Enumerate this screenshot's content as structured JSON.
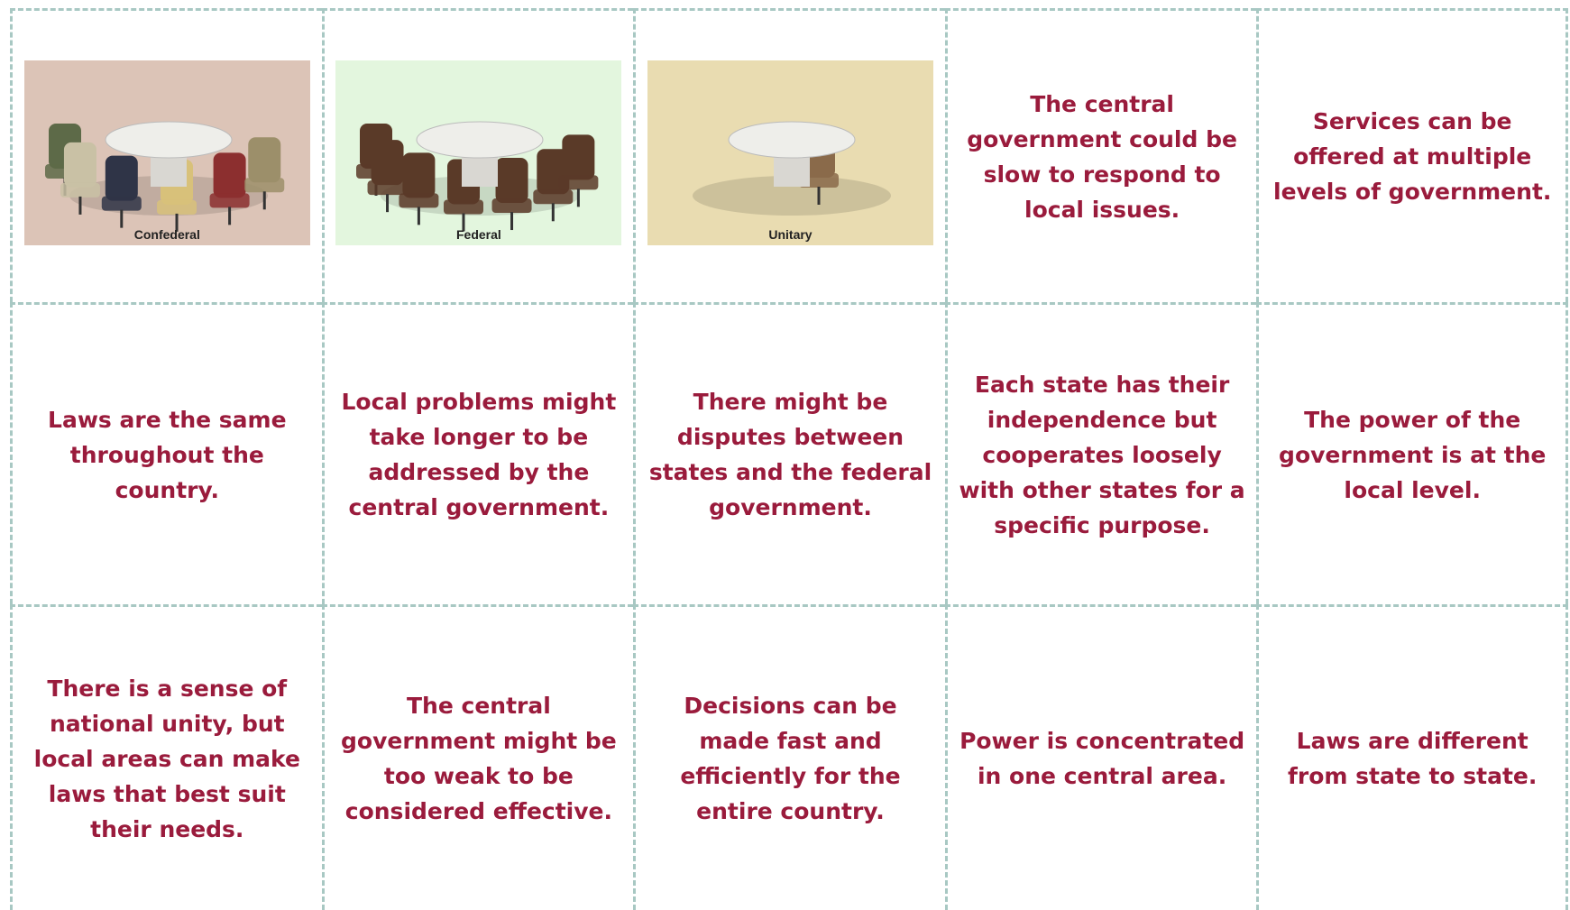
{
  "rows": [
    [
      {
        "caption": "Confederal"
      },
      {
        "caption": "Federal"
      },
      {
        "caption": "Unitary"
      },
      "The central government could be slow to respond to local issues.",
      "Services can be offered at multiple levels of government."
    ],
    [
      "Laws are the same throughout the country.",
      "Local problems might take longer to be addressed by the central government.",
      "There might be disputes between states and the federal government.",
      "Each state has their independence but cooperates loosely with other states for a specific purpose.",
      "The power of the government is at the local level."
    ],
    [
      "There is a sense of national unity, but local areas can make laws that best suit their needs.",
      "The central government might be too weak to be considered effective.",
      "Decisions can be made fast and efficiently for the entire country.",
      "Power is concentrated in one central area.",
      "Laws are different from state to state."
    ]
  ]
}
